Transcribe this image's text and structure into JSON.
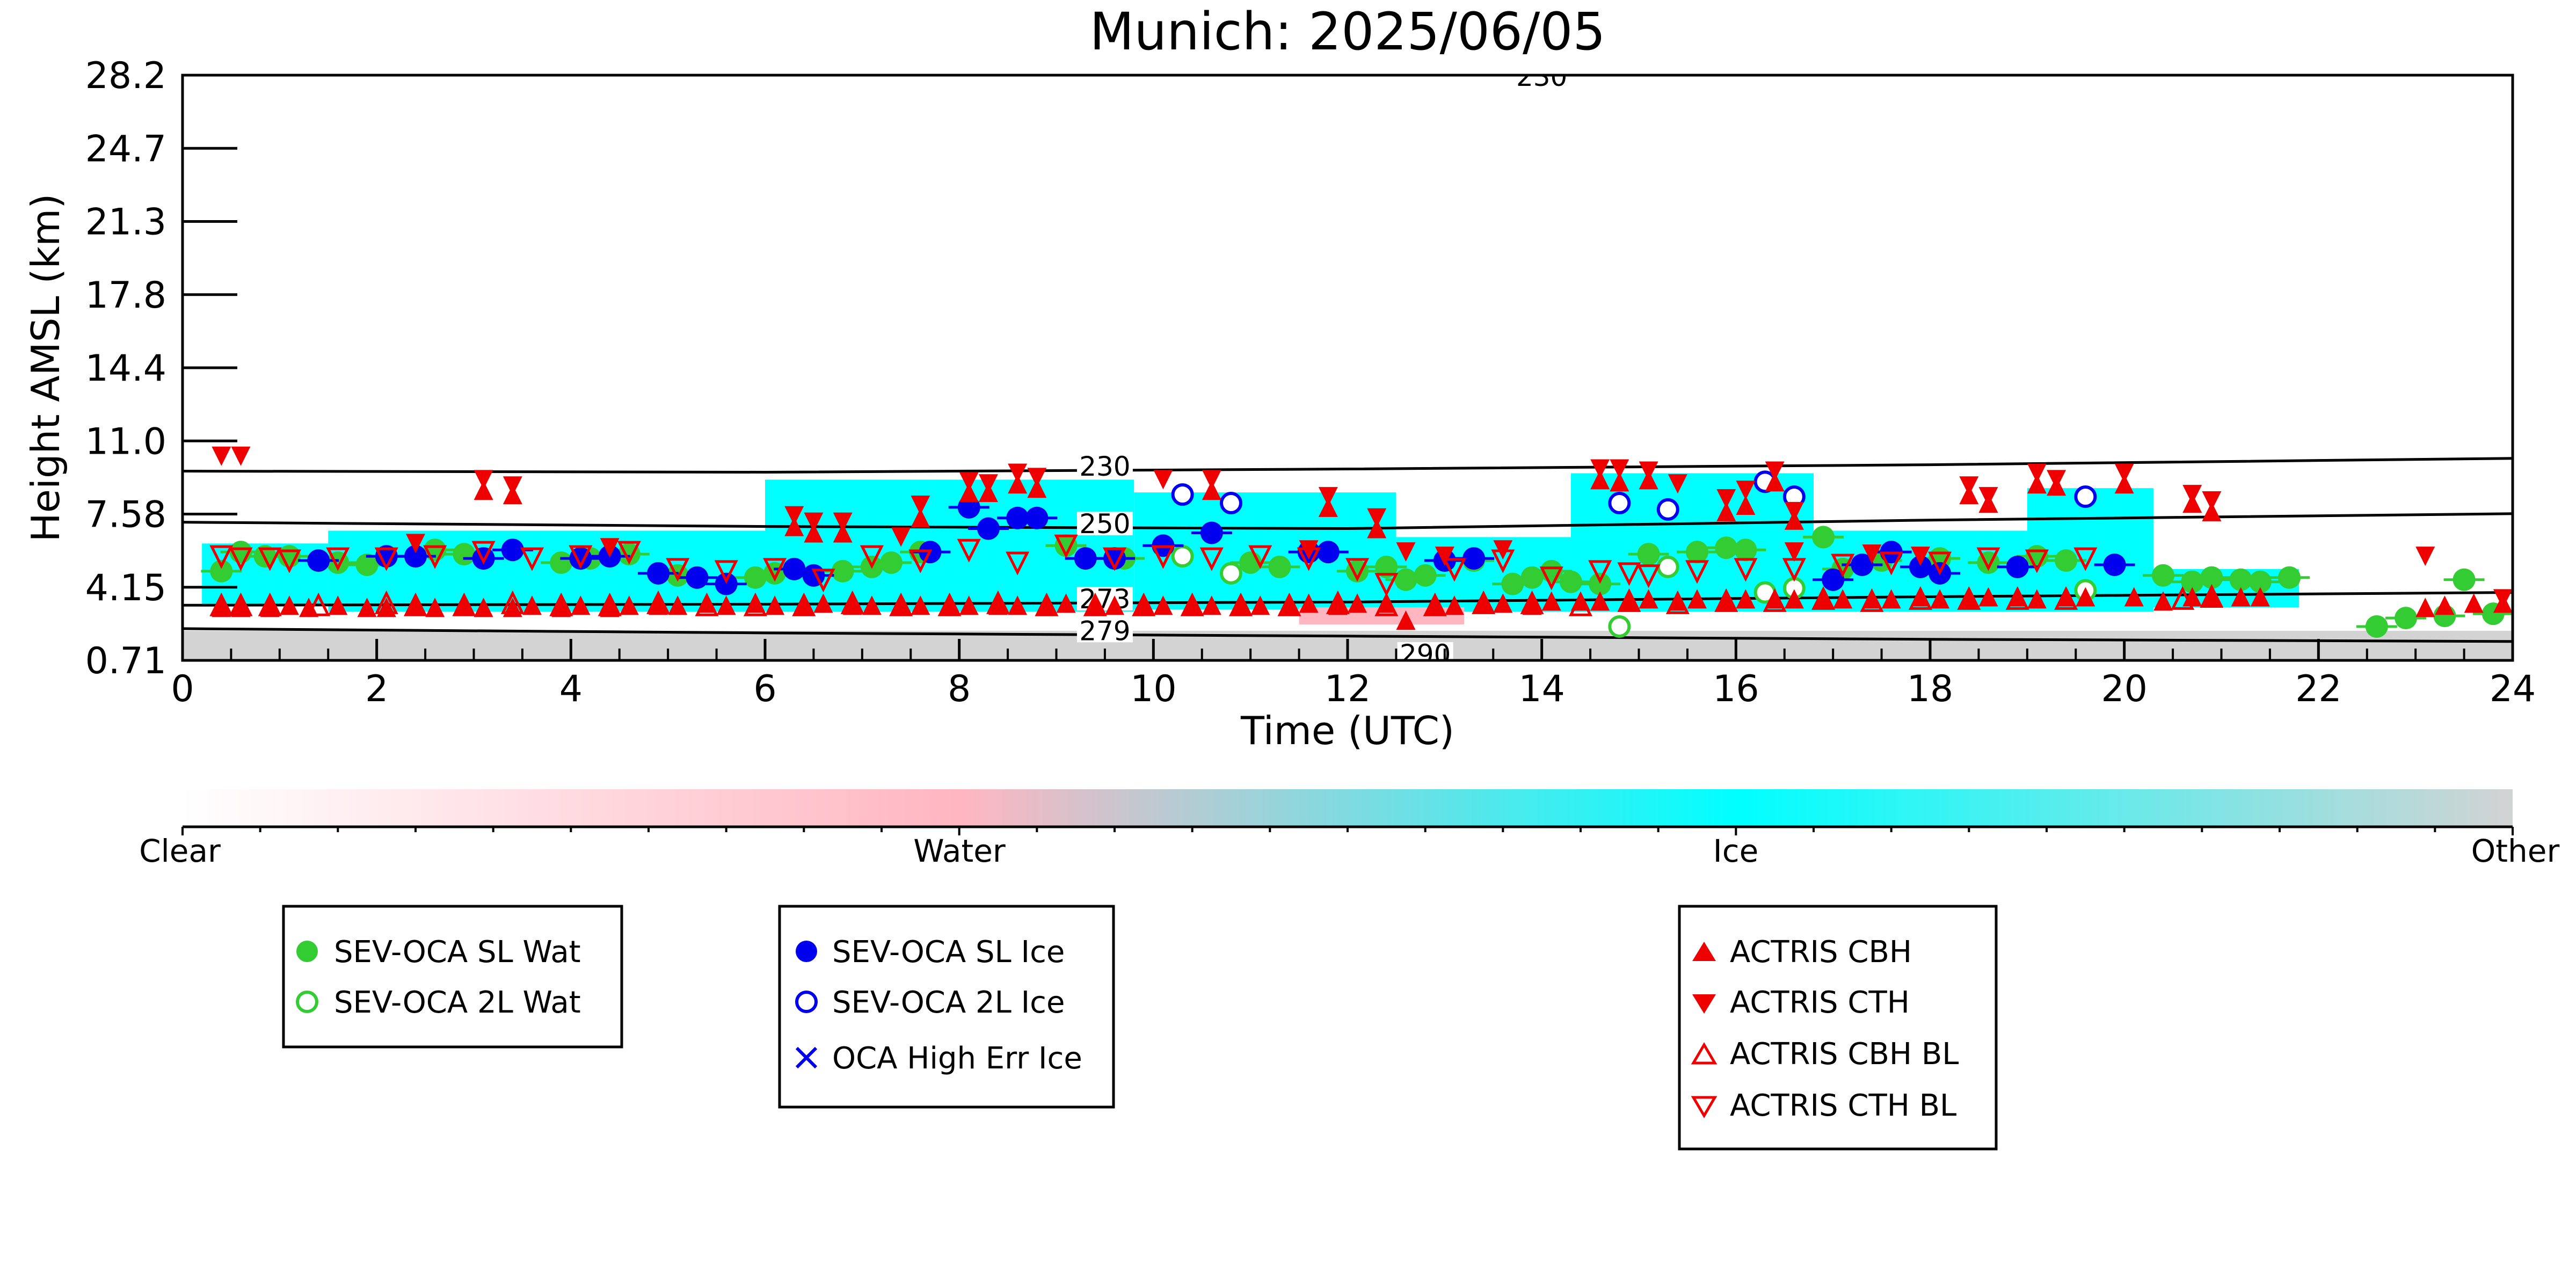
{
  "chart_data": {
    "type": "scatter",
    "title": "Munich: 2025/06/05",
    "xlabel": "Time (UTC)",
    "ylabel": "Height AMSL (km)",
    "xlim": [
      0,
      24
    ],
    "ylim": [
      0.71,
      28.2
    ],
    "x_ticks": [
      "0",
      "2",
      "4",
      "6",
      "8",
      "10",
      "12",
      "14",
      "16",
      "18",
      "20",
      "22",
      "24"
    ],
    "y_ticks": [
      "0.71",
      "4.15",
      "7.58",
      "11.0",
      "14.4",
      "17.8",
      "21.3",
      "24.7",
      "28.2"
    ],
    "grid": false,
    "colorbar": {
      "labels": [
        "Clear",
        "Water",
        "Ice",
        "Other"
      ],
      "colors": {
        "clear": "#ffffff",
        "water": "#ffb6c1",
        "ice": "#00ffff",
        "other": "#d3d3d3"
      }
    },
    "colors": {
      "sl_water": "#33cc33",
      "sl_ice": "#0000ee",
      "actris": "#ee0000",
      "contour": "#000000",
      "ground": "#d3d3d3"
    },
    "contours": [
      {
        "label": "230",
        "label_x": 9.5,
        "points": [
          [
            0,
            9.6
          ],
          [
            6,
            9.55
          ],
          [
            12,
            9.7
          ],
          [
            18,
            9.9
          ],
          [
            24,
            10.2
          ]
        ]
      },
      {
        "label": "250",
        "label_x": 9.5,
        "points": [
          [
            0,
            7.2
          ],
          [
            6,
            7.0
          ],
          [
            12,
            6.9
          ],
          [
            18,
            7.3
          ],
          [
            24,
            7.6
          ]
        ]
      },
      {
        "label": "273",
        "label_x": 9.5,
        "points": [
          [
            0,
            3.3
          ],
          [
            6,
            3.35
          ],
          [
            12,
            3.45
          ],
          [
            18,
            3.7
          ],
          [
            24,
            3.9
          ]
        ]
      },
      {
        "label": "279",
        "label_x": 9.5,
        "points": [
          [
            0,
            2.2
          ],
          [
            6,
            2.0
          ],
          [
            12,
            1.85
          ],
          [
            18,
            1.7
          ],
          [
            24,
            1.6
          ]
        ]
      },
      {
        "label": "290",
        "label_x": 12.8,
        "points": [
          [
            12.5,
            0.71
          ],
          [
            13.5,
            0.71
          ]
        ]
      },
      {
        "label": "230",
        "label_x": 14.0,
        "points": [
          [
            14.0,
            28.2
          ]
        ]
      }
    ],
    "clouds": [
      {
        "phase": "ice",
        "x0": 0.2,
        "x1": 1.5,
        "y0": 3.3,
        "y1": 6.2
      },
      {
        "phase": "ice",
        "x0": 1.5,
        "x1": 6.0,
        "y0": 3.0,
        "y1": 6.8
      },
      {
        "phase": "ice",
        "x0": 6.0,
        "x1": 9.8,
        "y0": 3.0,
        "y1": 9.2
      },
      {
        "phase": "ice",
        "x0": 9.8,
        "x1": 12.5,
        "y0": 3.1,
        "y1": 8.6
      },
      {
        "phase": "ice",
        "x0": 12.5,
        "x1": 14.3,
        "y0": 3.0,
        "y1": 6.5
      },
      {
        "phase": "ice",
        "x0": 14.3,
        "x1": 16.8,
        "y0": 3.0,
        "y1": 9.5
      },
      {
        "phase": "ice",
        "x0": 16.8,
        "x1": 19.0,
        "y0": 3.0,
        "y1": 6.8
      },
      {
        "phase": "ice",
        "x0": 19.0,
        "x1": 20.3,
        "y0": 3.0,
        "y1": 8.8
      },
      {
        "phase": "ice",
        "x0": 20.3,
        "x1": 21.8,
        "y0": 3.2,
        "y1": 5.0
      },
      {
        "phase": "water",
        "x0": 11.5,
        "x1": 13.2,
        "y0": 2.4,
        "y1": 3.2
      }
    ],
    "series": [
      {
        "name": "SEV-OCA SL Wat",
        "marker": "circle",
        "fill": "filled",
        "color": "#33cc33",
        "x": [
          0.4,
          0.6,
          0.85,
          1.1,
          1.6,
          1.9,
          2.6,
          2.9,
          3.9,
          4.2,
          4.6,
          5.1,
          5.9,
          6.1,
          6.8,
          7.1,
          7.3,
          7.6,
          9.1,
          9.7,
          11.0,
          11.3,
          12.1,
          12.4,
          12.6,
          12.8,
          13.3,
          13.7,
          13.9,
          14.1,
          14.3,
          14.6,
          15.1,
          15.6,
          15.9,
          16.1,
          16.9,
          17.1,
          17.5,
          18.1,
          18.6,
          19.1,
          19.4,
          20.4,
          20.7,
          20.9,
          21.2,
          21.4,
          21.7,
          22.6,
          22.9,
          23.3,
          23.5,
          23.8
        ],
        "y": [
          4.9,
          5.8,
          5.6,
          5.6,
          5.3,
          5.2,
          5.9,
          5.7,
          5.3,
          5.5,
          5.7,
          4.7,
          4.6,
          4.8,
          4.9,
          5.1,
          5.3,
          5.8,
          6.1,
          5.5,
          5.3,
          5.1,
          4.9,
          5.1,
          4.5,
          4.7,
          5.4,
          4.3,
          4.6,
          4.9,
          4.4,
          4.3,
          5.7,
          5.8,
          6.0,
          5.9,
          6.5,
          5.0,
          5.4,
          5.5,
          5.3,
          5.6,
          5.4,
          4.7,
          4.4,
          4.6,
          4.5,
          4.4,
          4.6,
          2.3,
          2.7,
          2.8,
          4.5,
          2.9
        ]
      },
      {
        "name": "SEV-OCA 2L Wat",
        "marker": "circle",
        "fill": "open",
        "color": "#33cc33",
        "x": [
          10.3,
          10.8,
          14.8,
          15.3,
          16.3,
          16.6,
          19.6
        ],
        "y": [
          5.6,
          4.8,
          2.3,
          5.1,
          3.9,
          4.1,
          4.0
        ]
      },
      {
        "name": "SEV-OCA SL Ice",
        "marker": "circle",
        "fill": "filled",
        "color": "#0000ee",
        "x": [
          1.4,
          2.1,
          2.4,
          3.1,
          3.4,
          4.1,
          4.4,
          4.9,
          5.3,
          5.6,
          6.3,
          6.5,
          7.7,
          8.1,
          8.3,
          8.6,
          8.8,
          9.3,
          9.6,
          10.1,
          10.6,
          11.6,
          11.8,
          13.0,
          13.3,
          17.0,
          17.3,
          17.6,
          17.9,
          18.1,
          18.9,
          19.9
        ],
        "y": [
          5.4,
          5.6,
          5.6,
          5.5,
          5.9,
          5.5,
          5.6,
          4.8,
          4.6,
          4.3,
          5.0,
          4.7,
          5.8,
          7.9,
          6.9,
          7.4,
          7.4,
          5.5,
          5.5,
          6.1,
          6.7,
          5.8,
          5.8,
          5.4,
          5.5,
          4.5,
          5.2,
          5.8,
          5.1,
          4.8,
          5.1,
          5.2
        ]
      },
      {
        "name": "SEV-OCA 2L Ice",
        "marker": "circle",
        "fill": "open",
        "color": "#0000ee",
        "x": [
          10.3,
          10.8,
          14.8,
          15.3,
          16.3,
          16.6,
          19.6
        ],
        "y": [
          8.5,
          8.1,
          8.1,
          7.8,
          9.1,
          8.4,
          8.4
        ]
      },
      {
        "name": "OCA High Err Ice",
        "marker": "x",
        "fill": "open",
        "color": "#0000ee",
        "x": [],
        "y": []
      },
      {
        "name": "ACTRIS CBH",
        "marker": "triangle-up",
        "fill": "filled",
        "color": "#ee0000",
        "x": [
          0.4,
          0.6,
          0.9,
          1.1,
          1.3,
          1.6,
          1.9,
          2.1,
          2.4,
          2.6,
          2.9,
          3.1,
          3.4,
          3.6,
          3.9,
          4.1,
          4.4,
          4.6,
          4.9,
          5.1,
          5.4,
          5.6,
          5.9,
          6.1,
          6.4,
          6.6,
          6.9,
          7.1,
          7.4,
          7.6,
          7.9,
          8.1,
          8.4,
          8.6,
          8.9,
          9.1,
          9.4,
          9.6,
          9.9,
          10.1,
          10.4,
          10.6,
          10.9,
          11.1,
          11.4,
          11.6,
          11.9,
          12.1,
          12.4,
          12.6,
          12.9,
          13.1,
          13.4,
          13.6,
          13.9,
          14.1,
          14.4,
          14.6,
          14.9,
          15.1,
          15.4,
          15.6,
          15.9,
          16.1,
          16.4,
          16.6,
          16.9,
          17.1,
          17.4,
          17.6,
          17.9,
          18.1,
          18.4,
          18.6,
          18.9,
          19.1,
          19.4,
          19.6,
          20.1,
          20.4,
          20.7,
          20.9,
          21.2,
          21.4,
          23.1,
          23.3,
          23.6,
          23.9,
          3.1,
          3.4,
          6.3,
          6.5,
          6.8,
          7.6,
          8.1,
          8.3,
          8.6,
          8.8,
          10.6,
          11.8,
          12.3,
          14.6,
          14.8,
          15.1,
          15.9,
          16.1,
          16.4,
          16.6,
          18.4,
          18.6,
          19.1,
          19.3,
          20.0,
          20.7,
          20.9
        ],
        "y": [
          3.2,
          3.2,
          3.2,
          3.3,
          3.2,
          3.3,
          3.2,
          3.2,
          3.3,
          3.2,
          3.3,
          3.2,
          3.2,
          3.3,
          3.2,
          3.3,
          3.2,
          3.3,
          3.3,
          3.3,
          3.4,
          3.3,
          3.4,
          3.3,
          3.3,
          3.4,
          3.3,
          3.3,
          3.3,
          3.3,
          3.3,
          3.3,
          3.3,
          3.3,
          3.3,
          3.4,
          3.3,
          3.3,
          3.3,
          3.3,
          3.3,
          3.3,
          3.3,
          3.3,
          3.3,
          3.4,
          3.3,
          3.4,
          3.4,
          2.6,
          3.3,
          3.3,
          3.4,
          3.4,
          3.3,
          3.5,
          3.5,
          3.5,
          3.5,
          3.6,
          3.5,
          3.6,
          3.5,
          3.6,
          3.6,
          3.6,
          3.6,
          3.6,
          3.6,
          3.6,
          3.7,
          3.6,
          3.6,
          3.7,
          3.7,
          3.6,
          3.7,
          3.7,
          3.7,
          3.5,
          3.7,
          3.7,
          3.7,
          3.7,
          3.2,
          3.3,
          3.4,
          3.4,
          8.7,
          8.5,
          7.0,
          6.7,
          6.7,
          7.4,
          8.6,
          8.6,
          9.0,
          8.8,
          8.7,
          7.9,
          6.9,
          9.2,
          9.1,
          9.2,
          7.7,
          8.0,
          9.1,
          7.3,
          8.5,
          8.1,
          9.0,
          8.9,
          9.0,
          8.1,
          7.7
        ]
      },
      {
        "name": "ACTRIS CTH",
        "marker": "triangle-down",
        "fill": "filled",
        "color": "#ee0000",
        "x": [
          0.4,
          0.6,
          3.1,
          3.4,
          6.3,
          6.5,
          6.8,
          7.6,
          8.1,
          8.3,
          8.6,
          8.8,
          10.1,
          10.6,
          11.8,
          12.3,
          14.6,
          14.8,
          15.1,
          15.4,
          15.9,
          16.1,
          16.4,
          16.6,
          18.4,
          18.6,
          19.1,
          19.3,
          20.0,
          20.7,
          20.9,
          2.4,
          4.4,
          7.4,
          11.6,
          12.6,
          13.0,
          13.6,
          16.6,
          17.4,
          17.9,
          23.1,
          23.9
        ],
        "y": [
          10.3,
          10.3,
          9.2,
          8.9,
          7.5,
          7.2,
          7.2,
          8.0,
          9.1,
          9.0,
          9.5,
          9.3,
          9.2,
          9.2,
          8.4,
          7.4,
          9.7,
          9.7,
          9.6,
          9.0,
          8.3,
          8.7,
          9.6,
          7.7,
          8.9,
          8.4,
          9.5,
          9.2,
          9.5,
          8.5,
          8.2,
          6.2,
          6.0,
          6.5,
          5.9,
          5.8,
          5.6,
          5.9,
          5.8,
          5.7,
          5.6,
          5.6,
          3.6
        ]
      },
      {
        "name": "ACTRIS CBH BL",
        "marker": "triangle-up",
        "fill": "open",
        "color": "#ee0000",
        "x": [
          0.4,
          0.6,
          0.9,
          1.4,
          2.1,
          2.4,
          2.9,
          3.4,
          3.9,
          4.4,
          4.9,
          5.4,
          5.9,
          6.4,
          6.9,
          7.4,
          7.9,
          8.4,
          8.9,
          9.4,
          9.9,
          10.4,
          10.9,
          11.4,
          11.9,
          12.4,
          12.9,
          13.4,
          13.9,
          14.4,
          14.9,
          15.4,
          15.9,
          16.4,
          16.9,
          17.4,
          17.9,
          18.4,
          18.9,
          19.4,
          20.6,
          20.9
        ],
        "y": [
          3.3,
          3.3,
          3.3,
          3.3,
          3.4,
          3.3,
          3.3,
          3.4,
          3.3,
          3.3,
          3.4,
          3.3,
          3.3,
          3.3,
          3.4,
          3.3,
          3.3,
          3.4,
          3.3,
          3.3,
          3.3,
          3.3,
          3.3,
          3.3,
          3.4,
          3.3,
          3.3,
          3.4,
          3.4,
          3.3,
          3.5,
          3.4,
          3.5,
          3.5,
          3.6,
          3.5,
          3.6,
          3.6,
          3.6,
          3.6,
          3.6,
          3.7
        ]
      },
      {
        "name": "ACTRIS CTH BL",
        "marker": "triangle-down",
        "fill": "open",
        "color": "#ee0000",
        "x": [
          0.4,
          0.6,
          0.9,
          1.1,
          1.6,
          2.1,
          2.6,
          3.1,
          3.6,
          4.1,
          4.6,
          5.1,
          5.6,
          6.1,
          6.6,
          7.1,
          7.6,
          8.1,
          8.6,
          9.1,
          9.6,
          10.1,
          10.6,
          11.1,
          11.6,
          12.1,
          12.4,
          13.1,
          13.6,
          14.1,
          14.6,
          14.9,
          15.1,
          15.6,
          16.1,
          16.6,
          17.1,
          17.6,
          18.1,
          18.6,
          19.1,
          19.6
        ],
        "y": [
          5.6,
          5.5,
          5.5,
          5.4,
          5.5,
          5.5,
          5.6,
          5.8,
          5.5,
          5.6,
          5.8,
          5.0,
          4.9,
          5.0,
          4.5,
          5.6,
          5.4,
          5.9,
          5.3,
          6.1,
          5.5,
          5.6,
          5.5,
          5.6,
          5.5,
          5.0,
          4.3,
          5.0,
          5.4,
          4.6,
          4.9,
          4.8,
          4.7,
          4.9,
          5.0,
          5.0,
          5.2,
          5.3,
          5.3,
          5.5,
          5.4,
          5.5
        ]
      }
    ],
    "legends": [
      {
        "entries": [
          "SEV-OCA SL Wat",
          "SEV-OCA 2L Wat"
        ]
      },
      {
        "entries": [
          "SEV-OCA SL Ice",
          "SEV-OCA 2L Ice",
          "OCA High Err Ice"
        ]
      },
      {
        "entries": [
          "ACTRIS CBH",
          "ACTRIS CTH",
          "ACTRIS CBH BL",
          "ACTRIS CTH BL"
        ]
      }
    ]
  }
}
